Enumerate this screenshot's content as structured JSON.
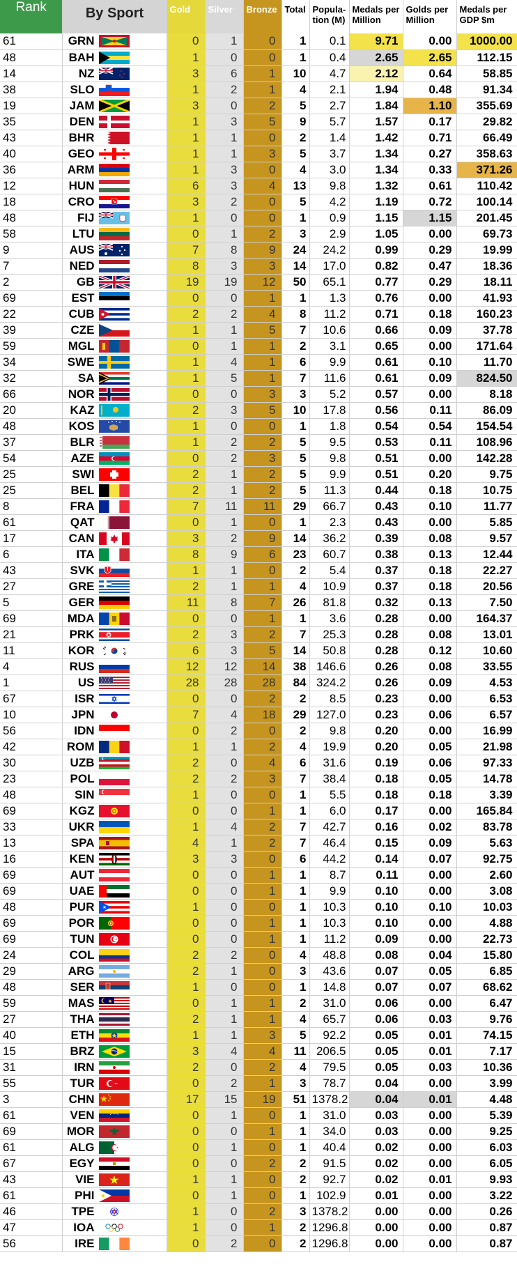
{
  "headers": {
    "rank": "Rank",
    "sport": "By Sport",
    "gold": "Gold",
    "silver": "Silver",
    "bronze": "Bronze",
    "total": "Total",
    "population": "Popula-tion (M)",
    "medals_per_million": "Medals per Million",
    "golds_per_million": "Golds per Million",
    "medals_per_gdp": "Medals per GDP $m"
  },
  "highlight_colors": {
    "yellow_strong": "#f3e24a",
    "yellow_light": "#faf3b0",
    "orange": "#e6b449",
    "grey": "#d6d6d6"
  },
  "rows": [
    [
      "61",
      "GRN",
      "0",
      "1",
      "0",
      "1",
      "0.1",
      "9.71",
      "0.00",
      "1000.00"
    ],
    [
      "48",
      "BAH",
      "1",
      "0",
      "0",
      "1",
      "0.4",
      "2.65",
      "2.65",
      "112.15"
    ],
    [
      "14",
      "NZ",
      "3",
      "6",
      "1",
      "10",
      "4.7",
      "2.12",
      "0.64",
      "58.85"
    ],
    [
      "38",
      "SLO",
      "1",
      "2",
      "1",
      "4",
      "2.1",
      "1.94",
      "0.48",
      "91.34"
    ],
    [
      "19",
      "JAM",
      "3",
      "0",
      "2",
      "5",
      "2.7",
      "1.84",
      "1.10",
      "355.69"
    ],
    [
      "35",
      "DEN",
      "1",
      "3",
      "5",
      "9",
      "5.7",
      "1.57",
      "0.17",
      "29.82"
    ],
    [
      "43",
      "BHR",
      "1",
      "1",
      "0",
      "2",
      "1.4",
      "1.42",
      "0.71",
      "66.49"
    ],
    [
      "40",
      "GEO",
      "1",
      "1",
      "3",
      "5",
      "3.7",
      "1.34",
      "0.27",
      "358.63"
    ],
    [
      "36",
      "ARM",
      "1",
      "3",
      "0",
      "4",
      "3.0",
      "1.34",
      "0.33",
      "371.26"
    ],
    [
      "12",
      "HUN",
      "6",
      "3",
      "4",
      "13",
      "9.8",
      "1.32",
      "0.61",
      "110.42"
    ],
    [
      "18",
      "CRO",
      "3",
      "2",
      "0",
      "5",
      "4.2",
      "1.19",
      "0.72",
      "100.14"
    ],
    [
      "48",
      "FIJ",
      "1",
      "0",
      "0",
      "1",
      "0.9",
      "1.15",
      "1.15",
      "201.45"
    ],
    [
      "58",
      "LTU",
      "0",
      "1",
      "2",
      "3",
      "2.9",
      "1.05",
      "0.00",
      "69.73"
    ],
    [
      "9",
      "AUS",
      "7",
      "8",
      "9",
      "24",
      "24.2",
      "0.99",
      "0.29",
      "19.99"
    ],
    [
      "7",
      "NED",
      "8",
      "3",
      "3",
      "14",
      "17.0",
      "0.82",
      "0.47",
      "18.36"
    ],
    [
      "2",
      "GB",
      "19",
      "19",
      "12",
      "50",
      "65.1",
      "0.77",
      "0.29",
      "18.11"
    ],
    [
      "69",
      "EST",
      "0",
      "0",
      "1",
      "1",
      "1.3",
      "0.76",
      "0.00",
      "41.93"
    ],
    [
      "22",
      "CUB",
      "2",
      "2",
      "4",
      "8",
      "11.2",
      "0.71",
      "0.18",
      "160.23"
    ],
    [
      "39",
      "CZE",
      "1",
      "1",
      "5",
      "7",
      "10.6",
      "0.66",
      "0.09",
      "37.78"
    ],
    [
      "59",
      "MGL",
      "0",
      "1",
      "1",
      "2",
      "3.1",
      "0.65",
      "0.00",
      "171.64"
    ],
    [
      "34",
      "SWE",
      "1",
      "4",
      "1",
      "6",
      "9.9",
      "0.61",
      "0.10",
      "11.70"
    ],
    [
      "32",
      "SA",
      "1",
      "5",
      "1",
      "7",
      "11.6",
      "0.61",
      "0.09",
      "824.50"
    ],
    [
      "66",
      "NOR",
      "0",
      "0",
      "3",
      "3",
      "5.2",
      "0.57",
      "0.00",
      "8.18"
    ],
    [
      "20",
      "KAZ",
      "2",
      "3",
      "5",
      "10",
      "17.8",
      "0.56",
      "0.11",
      "86.09"
    ],
    [
      "48",
      "KOS",
      "1",
      "0",
      "0",
      "1",
      "1.8",
      "0.54",
      "0.54",
      "154.54"
    ],
    [
      "37",
      "BLR",
      "1",
      "2",
      "2",
      "5",
      "9.5",
      "0.53",
      "0.11",
      "108.96"
    ],
    [
      "54",
      "AZE",
      "0",
      "2",
      "3",
      "5",
      "9.8",
      "0.51",
      "0.00",
      "142.28"
    ],
    [
      "25",
      "SWI",
      "2",
      "1",
      "2",
      "5",
      "9.9",
      "0.51",
      "0.20",
      "9.75"
    ],
    [
      "25",
      "BEL",
      "2",
      "1",
      "2",
      "5",
      "11.3",
      "0.44",
      "0.18",
      "10.75"
    ],
    [
      "8",
      "FRA",
      "7",
      "11",
      "11",
      "29",
      "66.7",
      "0.43",
      "0.10",
      "11.77"
    ],
    [
      "61",
      "QAT",
      "0",
      "1",
      "0",
      "1",
      "2.3",
      "0.43",
      "0.00",
      "5.85"
    ],
    [
      "17",
      "CAN",
      "3",
      "2",
      "9",
      "14",
      "36.2",
      "0.39",
      "0.08",
      "9.57"
    ],
    [
      "6",
      "ITA",
      "8",
      "9",
      "6",
      "23",
      "60.7",
      "0.38",
      "0.13",
      "12.44"
    ],
    [
      "43",
      "SVK",
      "1",
      "1",
      "0",
      "2",
      "5.4",
      "0.37",
      "0.18",
      "22.27"
    ],
    [
      "27",
      "GRE",
      "2",
      "1",
      "1",
      "4",
      "10.9",
      "0.37",
      "0.18",
      "20.56"
    ],
    [
      "5",
      "GER",
      "11",
      "8",
      "7",
      "26",
      "81.8",
      "0.32",
      "0.13",
      "7.50"
    ],
    [
      "69",
      "MDA",
      "0",
      "0",
      "1",
      "1",
      "3.6",
      "0.28",
      "0.00",
      "164.37"
    ],
    [
      "21",
      "PRK",
      "2",
      "3",
      "2",
      "7",
      "25.3",
      "0.28",
      "0.08",
      "13.01"
    ],
    [
      "11",
      "KOR",
      "6",
      "3",
      "5",
      "14",
      "50.8",
      "0.28",
      "0.12",
      "10.60"
    ],
    [
      "4",
      "RUS",
      "12",
      "12",
      "14",
      "38",
      "146.6",
      "0.26",
      "0.08",
      "33.55"
    ],
    [
      "1",
      "US",
      "28",
      "28",
      "28",
      "84",
      "324.2",
      "0.26",
      "0.09",
      "4.53"
    ],
    [
      "67",
      "ISR",
      "0",
      "0",
      "2",
      "2",
      "8.5",
      "0.23",
      "0.00",
      "6.53"
    ],
    [
      "10",
      "JPN",
      "7",
      "4",
      "18",
      "29",
      "127.0",
      "0.23",
      "0.06",
      "6.57"
    ],
    [
      "56",
      "IDN",
      "0",
      "2",
      "0",
      "2",
      "9.8",
      "0.20",
      "0.00",
      "16.99"
    ],
    [
      "42",
      "ROM",
      "1",
      "1",
      "2",
      "4",
      "19.9",
      "0.20",
      "0.05",
      "21.98"
    ],
    [
      "30",
      "UZB",
      "2",
      "0",
      "4",
      "6",
      "31.6",
      "0.19",
      "0.06",
      "97.33"
    ],
    [
      "23",
      "POL",
      "2",
      "2",
      "3",
      "7",
      "38.4",
      "0.18",
      "0.05",
      "14.78"
    ],
    [
      "48",
      "SIN",
      "1",
      "0",
      "0",
      "1",
      "5.5",
      "0.18",
      "0.18",
      "3.39"
    ],
    [
      "69",
      "KGZ",
      "0",
      "0",
      "1",
      "1",
      "6.0",
      "0.17",
      "0.00",
      "165.84"
    ],
    [
      "33",
      "UKR",
      "1",
      "4",
      "2",
      "7",
      "42.7",
      "0.16",
      "0.02",
      "83.78"
    ],
    [
      "13",
      "SPA",
      "4",
      "1",
      "2",
      "7",
      "46.4",
      "0.15",
      "0.09",
      "5.63"
    ],
    [
      "16",
      "KEN",
      "3",
      "3",
      "0",
      "6",
      "44.2",
      "0.14",
      "0.07",
      "92.75"
    ],
    [
      "69",
      "AUT",
      "0",
      "0",
      "1",
      "1",
      "8.7",
      "0.11",
      "0.00",
      "2.60"
    ],
    [
      "69",
      "UAE",
      "0",
      "0",
      "1",
      "1",
      "9.9",
      "0.10",
      "0.00",
      "3.08"
    ],
    [
      "48",
      "PUR",
      "1",
      "0",
      "0",
      "1",
      "10.3",
      "0.10",
      "0.10",
      "10.03"
    ],
    [
      "69",
      "POR",
      "0",
      "0",
      "1",
      "1",
      "10.3",
      "0.10",
      "0.00",
      "4.88"
    ],
    [
      "69",
      "TUN",
      "0",
      "0",
      "1",
      "1",
      "11.2",
      "0.09",
      "0.00",
      "22.73"
    ],
    [
      "24",
      "COL",
      "2",
      "2",
      "0",
      "4",
      "48.8",
      "0.08",
      "0.04",
      "15.80"
    ],
    [
      "29",
      "ARG",
      "2",
      "1",
      "0",
      "3",
      "43.6",
      "0.07",
      "0.05",
      "6.85"
    ],
    [
      "48",
      "SER",
      "1",
      "0",
      "0",
      "1",
      "14.8",
      "0.07",
      "0.07",
      "68.62"
    ],
    [
      "59",
      "MAS",
      "0",
      "1",
      "1",
      "2",
      "31.0",
      "0.06",
      "0.00",
      "6.47"
    ],
    [
      "27",
      "THA",
      "2",
      "1",
      "1",
      "4",
      "65.7",
      "0.06",
      "0.03",
      "9.76"
    ],
    [
      "40",
      "ETH",
      "1",
      "1",
      "3",
      "5",
      "92.2",
      "0.05",
      "0.01",
      "74.15"
    ],
    [
      "15",
      "BRZ",
      "3",
      "4",
      "4",
      "11",
      "206.5",
      "0.05",
      "0.01",
      "7.17"
    ],
    [
      "31",
      "IRN",
      "2",
      "0",
      "2",
      "4",
      "79.5",
      "0.05",
      "0.03",
      "10.36"
    ],
    [
      "55",
      "TUR",
      "0",
      "2",
      "1",
      "3",
      "78.7",
      "0.04",
      "0.00",
      "3.99"
    ],
    [
      "3",
      "CHN",
      "17",
      "15",
      "19",
      "51",
      "1378.2",
      "0.04",
      "0.01",
      "4.48"
    ],
    [
      "61",
      "VEN",
      "0",
      "1",
      "0",
      "1",
      "31.0",
      "0.03",
      "0.00",
      "5.39"
    ],
    [
      "69",
      "MOR",
      "0",
      "0",
      "1",
      "1",
      "34.0",
      "0.03",
      "0.00",
      "9.25"
    ],
    [
      "61",
      "ALG",
      "0",
      "1",
      "0",
      "1",
      "40.4",
      "0.02",
      "0.00",
      "6.03"
    ],
    [
      "67",
      "EGY",
      "0",
      "0",
      "2",
      "2",
      "91.5",
      "0.02",
      "0.00",
      "6.05"
    ],
    [
      "43",
      "VIE",
      "1",
      "1",
      "0",
      "2",
      "92.7",
      "0.02",
      "0.01",
      "9.93"
    ],
    [
      "61",
      "PHI",
      "0",
      "1",
      "0",
      "1",
      "102.9",
      "0.01",
      "0.00",
      "3.22"
    ],
    [
      "46",
      "TPE",
      "1",
      "0",
      "2",
      "3",
      "1378.2",
      "0.00",
      "0.00",
      "0.26"
    ],
    [
      "47",
      "IOA",
      "1",
      "0",
      "1",
      "2",
      "1296.8",
      "0.00",
      "0.00",
      "0.87"
    ],
    [
      "56",
      "IRE",
      "0",
      "2",
      "0",
      "2",
      "1296.8",
      "0.00",
      "0.00",
      "0.87"
    ]
  ],
  "highlights": {
    "0": {
      "7": "yellow_strong",
      "9": "yellow_strong"
    },
    "1": {
      "7": "grey",
      "8": "yellow_strong"
    },
    "2": {
      "7": "yellow_light"
    },
    "4": {
      "8": "orange"
    },
    "8": {
      "9": "orange"
    },
    "11": {
      "8": "grey"
    },
    "21": {
      "9": "grey"
    },
    "66": {
      "7": "grey",
      "8": "grey"
    }
  },
  "flag_icons": {
    "GRN": "grenada-flag-icon",
    "BAH": "bahamas-flag-icon",
    "NZ": "new-zealand-flag-icon",
    "SLO": "slovenia-flag-icon",
    "JAM": "jamaica-flag-icon",
    "DEN": "denmark-flag-icon",
    "BHR": "bahrain-flag-icon",
    "GEO": "georgia-flag-icon",
    "ARM": "armenia-flag-icon",
    "HUN": "hungary-flag-icon",
    "CRO": "croatia-flag-icon",
    "FIJ": "fiji-flag-icon",
    "LTU": "lithuania-flag-icon",
    "AUS": "australia-flag-icon",
    "NED": "netherlands-flag-icon",
    "GB": "great-britain-flag-icon",
    "EST": "estonia-flag-icon",
    "CUB": "cuba-flag-icon",
    "CZE": "czechia-flag-icon",
    "MGL": "mongolia-flag-icon",
    "SWE": "sweden-flag-icon",
    "SA": "south-africa-flag-icon",
    "NOR": "norway-flag-icon",
    "KAZ": "kazakhstan-flag-icon",
    "KOS": "kosovo-flag-icon",
    "BLR": "belarus-flag-icon",
    "AZE": "azerbaijan-flag-icon",
    "SWI": "switzerland-flag-icon",
    "BEL": "belgium-flag-icon",
    "FRA": "france-flag-icon",
    "QAT": "qatar-flag-icon",
    "CAN": "canada-flag-icon",
    "ITA": "italy-flag-icon",
    "SVK": "slovakia-flag-icon",
    "GRE": "greece-flag-icon",
    "GER": "germany-flag-icon",
    "MDA": "moldova-flag-icon",
    "PRK": "north-korea-flag-icon",
    "KOR": "south-korea-flag-icon",
    "RUS": "russia-flag-icon",
    "US": "usa-flag-icon",
    "ISR": "israel-flag-icon",
    "JPN": "japan-flag-icon",
    "IDN": "indonesia-flag-icon",
    "ROM": "romania-flag-icon",
    "UZB": "uzbekistan-flag-icon",
    "POL": "poland-flag-icon",
    "SIN": "singapore-flag-icon",
    "KGZ": "kyrgyzstan-flag-icon",
    "UKR": "ukraine-flag-icon",
    "SPA": "spain-flag-icon",
    "KEN": "kenya-flag-icon",
    "AUT": "austria-flag-icon",
    "UAE": "uae-flag-icon",
    "PUR": "puerto-rico-flag-icon",
    "POR": "portugal-flag-icon",
    "TUN": "tunisia-flag-icon",
    "COL": "colombia-flag-icon",
    "ARG": "argentina-flag-icon",
    "SER": "serbia-flag-icon",
    "MAS": "malaysia-flag-icon",
    "THA": "thailand-flag-icon",
    "ETH": "ethiopia-flag-icon",
    "BRZ": "brazil-flag-icon",
    "IRN": "iran-flag-icon",
    "TUR": "turkey-flag-icon",
    "CHN": "china-flag-icon",
    "VEN": "venezuela-flag-icon",
    "MOR": "morocco-flag-icon",
    "ALG": "algeria-flag-icon",
    "EGY": "egypt-flag-icon",
    "VIE": "vietnam-flag-icon",
    "PHI": "philippines-flag-icon",
    "TPE": "chinese-taipei-flag-icon",
    "IOA": "olympic-rings-flag-icon",
    "IRE": "ireland-flag-icon"
  }
}
